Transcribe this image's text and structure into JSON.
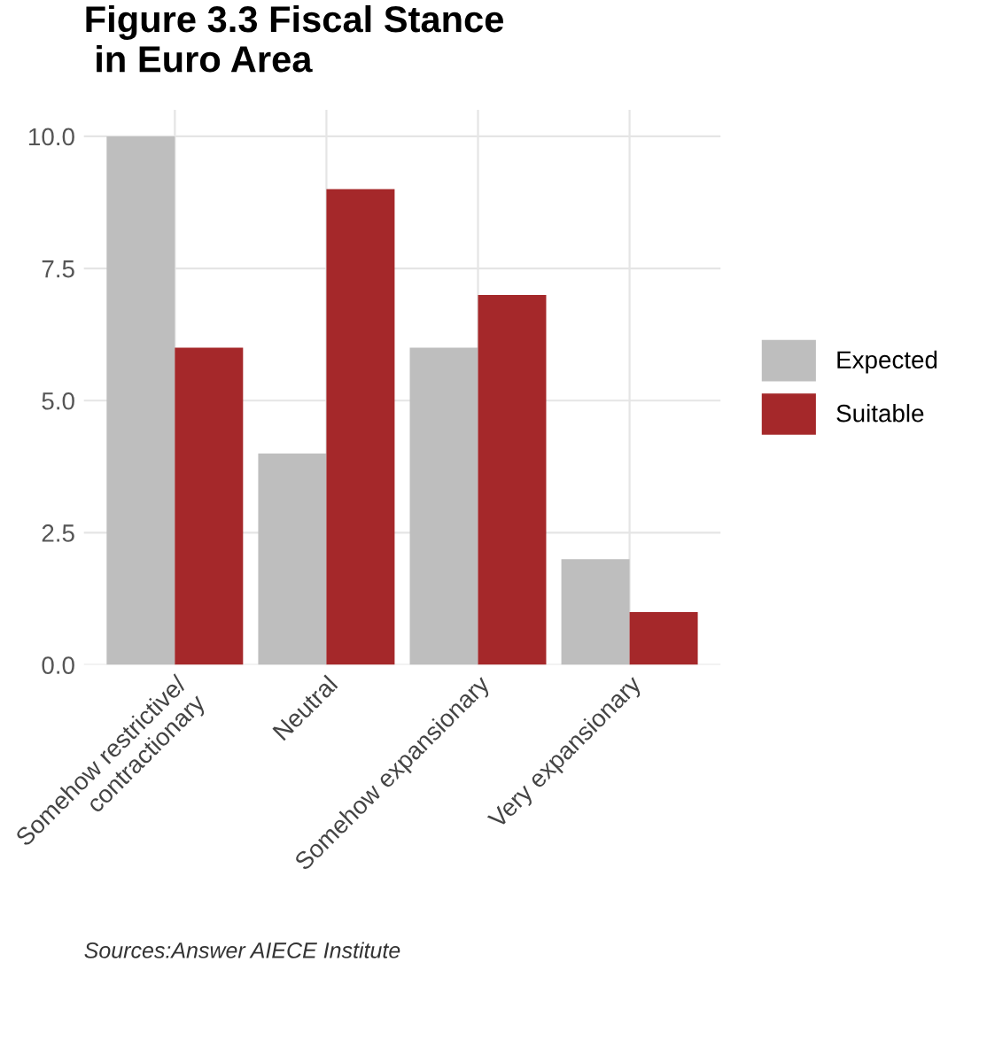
{
  "chart_data": {
    "type": "bar",
    "title": "Figure 3.3 Fiscal Stance\n in Euro Area",
    "categories": [
      "Somehow restrictive/\ncontractionary",
      "Neutral",
      "Somehow expansionary",
      "Very expansionary"
    ],
    "series": [
      {
        "name": "Expected",
        "color": "#bebebe",
        "values": [
          10,
          4,
          6,
          2
        ]
      },
      {
        "name": "Suitable",
        "color": "#a5282a",
        "values": [
          6,
          9,
          7,
          1
        ]
      }
    ],
    "ylim": [
      0,
      10.5
    ],
    "yticks": [
      {
        "value": 0,
        "label": "0.0"
      },
      {
        "value": 2.5,
        "label": "2.5"
      },
      {
        "value": 5,
        "label": "5.0"
      },
      {
        "value": 7.5,
        "label": "7.5"
      },
      {
        "value": 10,
        "label": "10.0"
      }
    ],
    "grid": true,
    "legend": "right",
    "annotations": [
      "Sources:Answer AIECE Institute"
    ]
  }
}
